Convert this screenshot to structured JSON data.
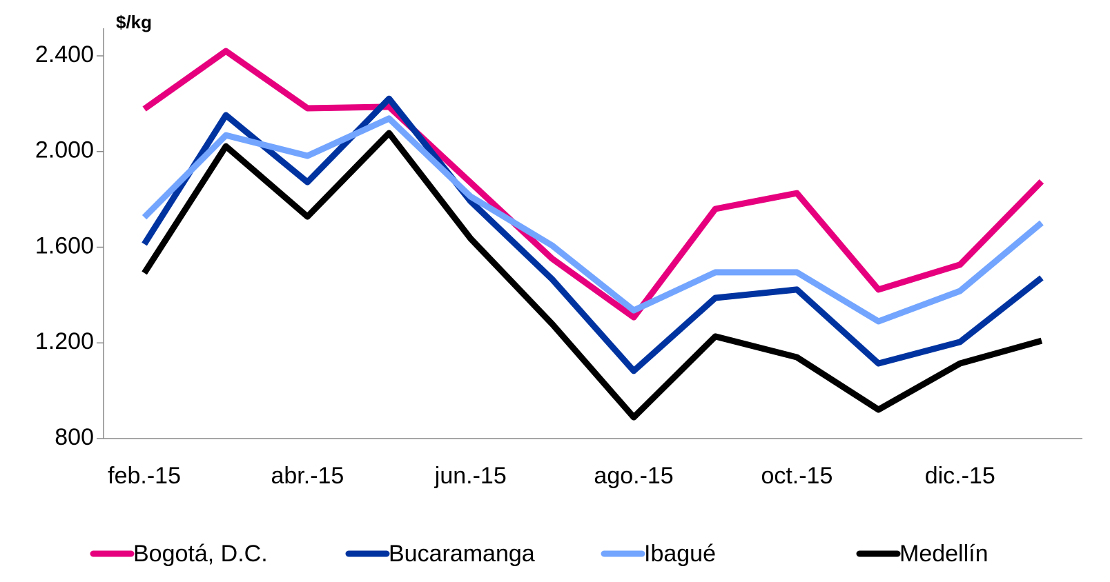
{
  "chart_data": {
    "type": "line",
    "y_label": "$/kg",
    "categories": [
      "feb.-15",
      null,
      "abr.-15",
      null,
      "jun.-15",
      null,
      "ago.-15",
      null,
      "oct.-15",
      null,
      "dic.-15",
      null
    ],
    "series": [
      {
        "name": "Bogotá, D.C.",
        "color": "#e6007e",
        "values": [
          2178,
          2420,
          2181,
          2187,
          1870,
          1552,
          1307,
          1760,
          1826,
          1423,
          1527,
          1875
        ]
      },
      {
        "name": "Bucaramanga",
        "color": "#0033a0",
        "values": [
          1613,
          2152,
          1872,
          2221,
          1792,
          1466,
          1083,
          1388,
          1423,
          1114,
          1204,
          1472
        ]
      },
      {
        "name": "Ibagué",
        "color": "#73a5ff",
        "values": [
          1725,
          2068,
          1982,
          2138,
          1812,
          1607,
          1336,
          1495,
          1495,
          1290,
          1417,
          1702
        ]
      },
      {
        "name": "Medellín",
        "color": "#000000",
        "values": [
          1492,
          2022,
          1728,
          2077,
          1636,
          1279,
          889,
          1227,
          1140,
          921,
          1114,
          1209
        ]
      }
    ],
    "ylim": [
      800,
      2400
    ],
    "yticks": [
      {
        "value": 800,
        "label": "800"
      },
      {
        "value": 1200,
        "label": "1.200"
      },
      {
        "value": 1600,
        "label": "1.600"
      },
      {
        "value": 2000,
        "label": "2.000"
      },
      {
        "value": 2400,
        "label": "2.400"
      }
    ],
    "legend": "bottom"
  }
}
